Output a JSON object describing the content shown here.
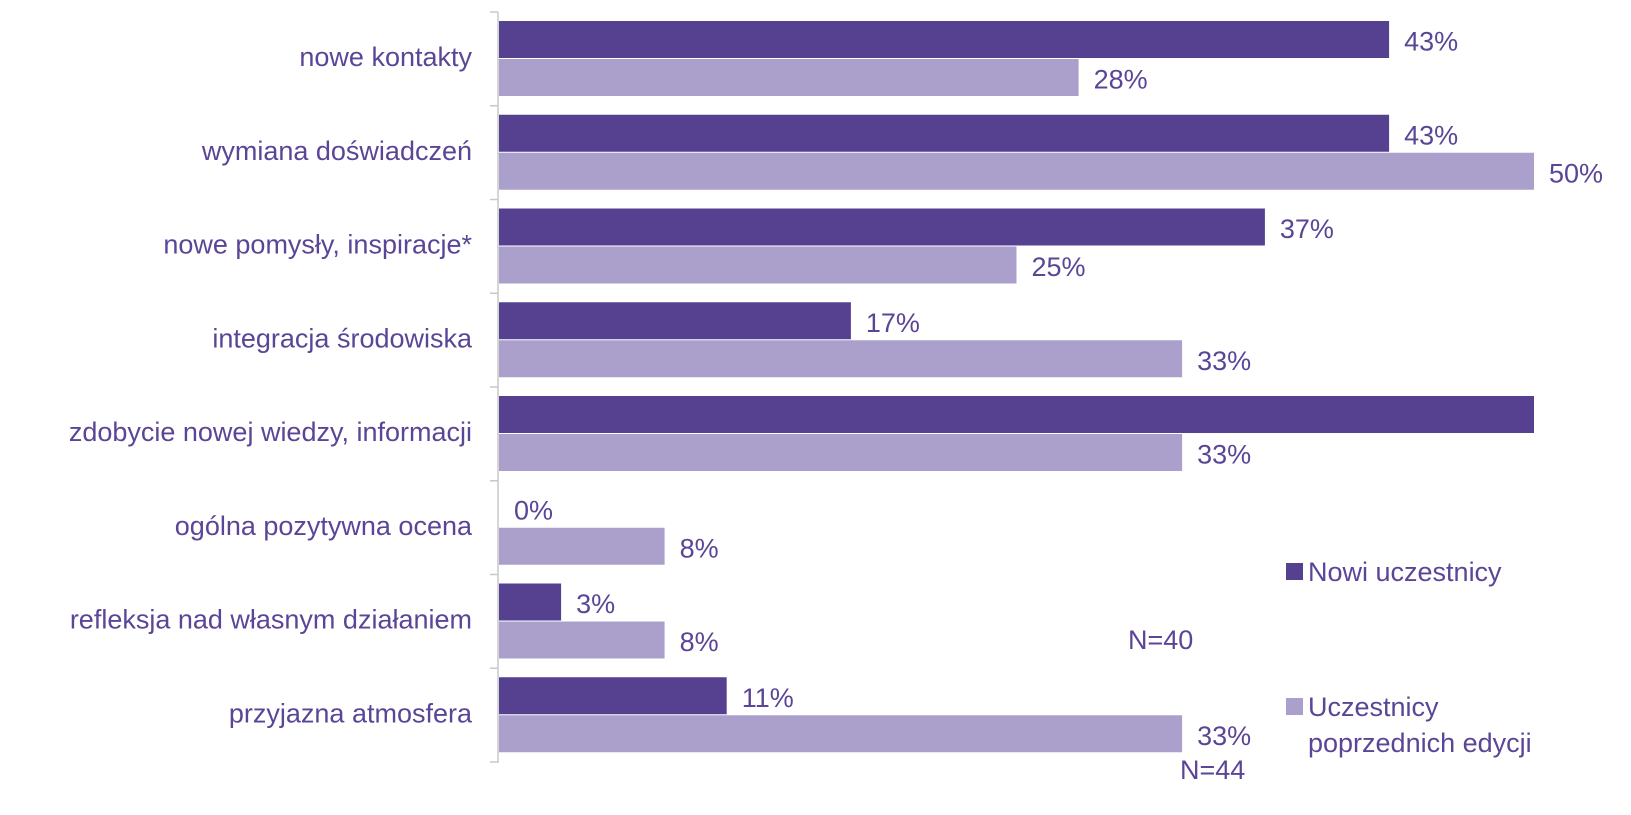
{
  "chart_data": {
    "type": "hbar",
    "categories": [
      "nowe kontakty",
      "wymiana doświadczeń",
      "nowe pomysły, inspiracje*",
      "integracja środowiska",
      "zdobycie nowej wiedzy, informacji",
      "ogólna pozytywna ocena",
      "refleksja nad własnym działaniem",
      "przyjazna atmosfera"
    ],
    "series": [
      {
        "name": "Nowi uczestnicy",
        "color": "#55418f",
        "values": [
          43,
          43,
          37,
          17,
          50,
          0,
          3,
          11
        ],
        "value_labels": [
          "43%",
          "43%",
          "37%",
          "17%",
          null,
          "0%",
          "3%",
          "11%"
        ]
      },
      {
        "name": "Uczestnicy poprzednich edycji",
        "color": "#aaa0cb",
        "values": [
          28,
          50,
          25,
          33,
          33,
          8,
          8,
          33
        ],
        "value_labels": [
          "28%",
          "50%",
          "25%",
          "33%",
          "33%",
          "8%",
          "8%",
          "33%"
        ]
      }
    ],
    "xlim": [
      0,
      50
    ],
    "annotations": [
      "N=40",
      "N=44"
    ],
    "legend": "right"
  }
}
